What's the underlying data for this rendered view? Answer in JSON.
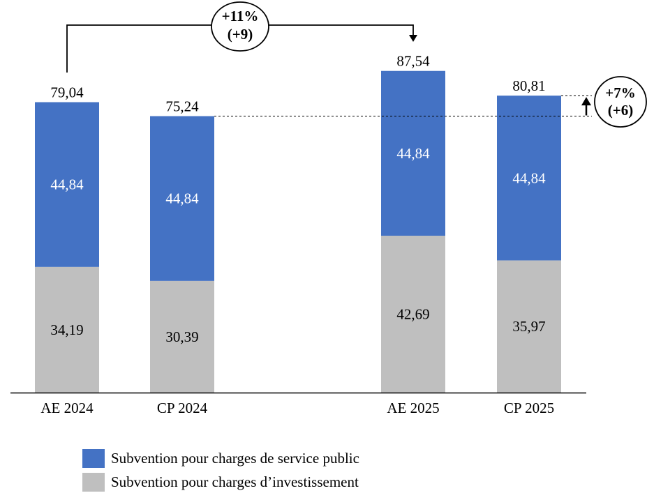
{
  "chart_data": {
    "type": "bar",
    "stacked": true,
    "categories": [
      "AE 2024",
      "CP 2024",
      "AE 2025",
      "CP 2025"
    ],
    "series": [
      {
        "name": "Subvention pour charges d’investissement",
        "color": "#bfbfbf",
        "values": [
          34.19,
          30.39,
          42.69,
          35.97
        ],
        "labels": [
          "34,19",
          "30,39",
          "42,69",
          "35,97"
        ]
      },
      {
        "name": "Subvention pour charges de service public",
        "color": "#4472c4",
        "values": [
          44.84,
          44.84,
          44.84,
          44.84
        ],
        "labels": [
          "44,84",
          "44,84",
          "44,84",
          "44,84"
        ]
      }
    ],
    "totals": [
      79.04,
      75.24,
      87.54,
      80.81
    ],
    "total_labels": [
      "79,04",
      "75,24",
      "87,54",
      "80,81"
    ],
    "ylim": [
      0,
      100
    ],
    "grid": false,
    "legend_position": "bottom-left",
    "annotations": [
      {
        "from": "AE 2024",
        "to": "AE 2025",
        "line1": "+11%",
        "line2": "(+9)"
      },
      {
        "from": "CP 2024",
        "to": "CP 2025",
        "line1": "+7%",
        "line2": "(+6)"
      }
    ]
  }
}
